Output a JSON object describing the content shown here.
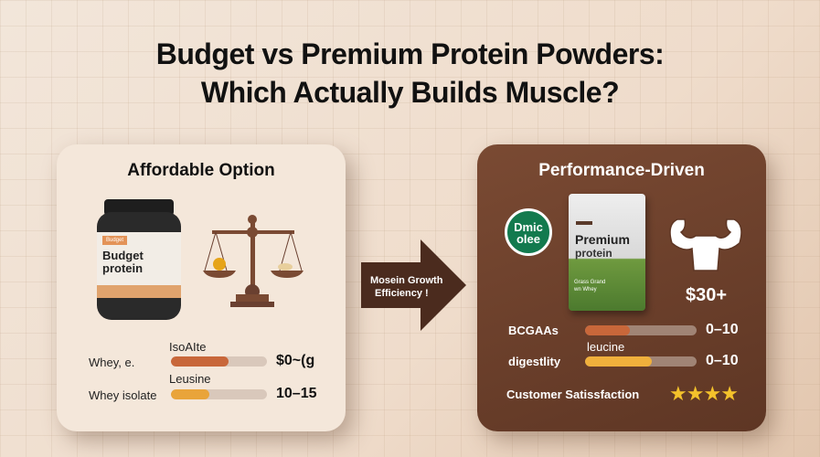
{
  "title": [
    "Budget vs Premium Protein Powders:",
    "Which Actually Builds Muscle?"
  ],
  "left": {
    "title": "Affordable Option",
    "jar": {
      "tag": "Budget",
      "name1": "Budget",
      "name2": "protein"
    },
    "rows": [
      {
        "label": "Whey, e.",
        "bar_label": "IsoAIte",
        "fill": 0.6,
        "color": "#c8673a",
        "value": "$0~(g"
      },
      {
        "label": "Whey isolate",
        "bar_label": "Leusine",
        "fill": 0.4,
        "color": "#e9a43a",
        "value": "10–15"
      }
    ]
  },
  "arrow": {
    "line1": "Mosein Growth",
    "line2": "Efficiency !",
    "color": "#4b2b1e"
  },
  "right": {
    "title": "Performance-Driven",
    "badge": {
      "line1": "Dmic",
      "line2": "olee",
      "color": "#137a4e"
    },
    "bag": {
      "name1": "Premium",
      "name2": "protein",
      "sub1": "Grass Grand",
      "sub2": "wn Whey"
    },
    "price": "$30+",
    "rows": [
      {
        "label": "BCGAAs",
        "bar_label": "",
        "fill": 0.4,
        "color": "#c8673a",
        "value": "0–10"
      },
      {
        "label": "digestlity",
        "bar_label": "leucine",
        "fill": 0.6,
        "color": "#f0b03c",
        "value": "0–10"
      }
    ],
    "satisfaction": {
      "label": "Customer Satissfaction",
      "stars": 4,
      "star_icon": "★",
      "color": "#f4c22b"
    }
  }
}
